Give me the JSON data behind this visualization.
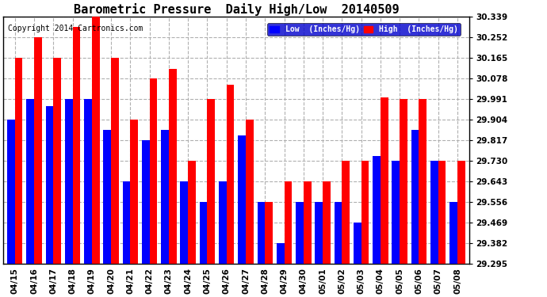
{
  "title": "Barometric Pressure  Daily High/Low  20140509",
  "copyright": "Copyright 2014 Cartronics.com",
  "dates": [
    "04/15",
    "04/16",
    "04/17",
    "04/18",
    "04/19",
    "04/20",
    "04/21",
    "04/22",
    "04/23",
    "04/24",
    "04/25",
    "04/26",
    "04/27",
    "04/28",
    "04/29",
    "04/30",
    "05/01",
    "05/02",
    "05/03",
    "05/04",
    "05/05",
    "05/06",
    "05/07",
    "05/08"
  ],
  "low": [
    29.905,
    29.991,
    29.96,
    29.991,
    29.991,
    29.862,
    29.643,
    29.817,
    29.862,
    29.643,
    29.556,
    29.643,
    29.836,
    29.556,
    29.382,
    29.556,
    29.556,
    29.556,
    29.469,
    29.75,
    29.73,
    29.862,
    29.73,
    29.556
  ],
  "high": [
    30.165,
    30.252,
    30.165,
    30.295,
    30.339,
    30.165,
    29.904,
    30.078,
    30.12,
    29.73,
    29.991,
    30.052,
    29.904,
    29.556,
    29.643,
    29.643,
    29.643,
    29.73,
    29.73,
    30.0,
    29.991,
    29.991,
    29.73,
    29.73
  ],
  "ylim": [
    29.295,
    30.339
  ],
  "yticks": [
    29.295,
    29.382,
    29.469,
    29.556,
    29.643,
    29.73,
    29.817,
    29.904,
    29.991,
    30.078,
    30.165,
    30.252,
    30.339
  ],
  "low_color": "#0000ff",
  "high_color": "#ff0000",
  "background_color": "#ffffff",
  "grid_color": "#b0b0b0",
  "bar_width": 0.4,
  "title_fontsize": 11,
  "tick_fontsize": 7.5,
  "copyright_fontsize": 7,
  "legend_low_label": "Low  (Inches/Hg)",
  "legend_high_label": "High  (Inches/Hg)"
}
